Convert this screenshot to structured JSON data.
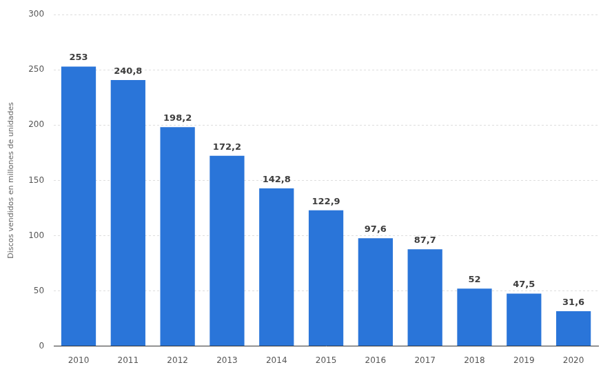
{
  "chart_data": {
    "type": "bar",
    "categories": [
      "2010",
      "2011",
      "2012",
      "2013",
      "2014",
      "2015",
      "2016",
      "2017",
      "2018",
      "2019",
      "2020"
    ],
    "values": [
      253,
      240.8,
      198.2,
      172.2,
      142.8,
      122.9,
      97.6,
      87.7,
      52,
      47.5,
      31.6
    ],
    "value_labels": [
      "253",
      "240,8",
      "198,2",
      "172,2",
      "142,8",
      "122,9",
      "97,6",
      "87,7",
      "52",
      "47,5",
      "31,6"
    ],
    "color": "#2a75d9",
    "ylabel": "Discos vendidos en millones de unidades",
    "ylim": [
      0,
      300
    ],
    "yticks": [
      0,
      50,
      100,
      150,
      200,
      250,
      300
    ],
    "grid": true,
    "data_labels": true
  }
}
